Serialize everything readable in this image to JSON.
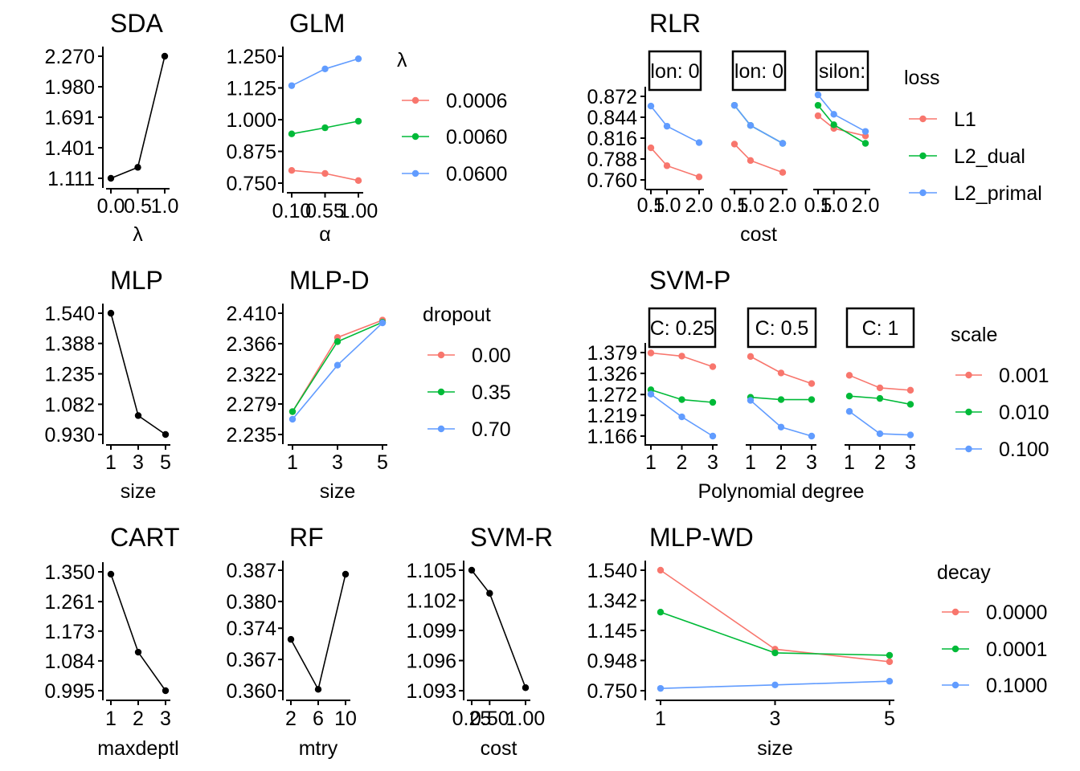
{
  "colors": {
    "red": "#F8766D",
    "green": "#00BA38",
    "blue": "#619CFF",
    "black": "#000000"
  },
  "chart_data": [
    {
      "id": "sda",
      "type": "line",
      "title": "SDA",
      "xlabel": "λ",
      "ylabel": "",
      "x_ticks": [
        "0.0",
        "0.5",
        "1.0"
      ],
      "y_ticks": [
        "2.270",
        "1.980",
        "1.691",
        "1.401",
        "1.111"
      ],
      "series": [
        {
          "color": "black",
          "x": [
            0.0,
            0.5,
            1.0
          ],
          "y": [
            1.111,
            1.215,
            2.27
          ]
        }
      ]
    },
    {
      "id": "glm",
      "type": "line",
      "title": "GLM",
      "xlabel": "α",
      "ylabel": "",
      "x_ticks": [
        "0.10",
        "0.55",
        "1.00"
      ],
      "y_ticks": [
        "1.250",
        "1.125",
        "1.000",
        "0.875",
        "0.750"
      ],
      "legend": {
        "title": "λ",
        "entries": [
          "0.0006",
          "0.0060",
          "0.0600"
        ],
        "colors": [
          "red",
          "green",
          "blue"
        ]
      },
      "series": [
        {
          "name": "0.0006",
          "color": "red",
          "x": [
            0.1,
            0.55,
            1.0
          ],
          "y": [
            0.8,
            0.788,
            0.76
          ]
        },
        {
          "name": "0.0060",
          "color": "green",
          "x": [
            0.1,
            0.55,
            1.0
          ],
          "y": [
            0.944,
            0.968,
            0.994
          ]
        },
        {
          "name": "0.0600",
          "color": "blue",
          "x": [
            0.1,
            0.55,
            1.0
          ],
          "y": [
            1.134,
            1.2,
            1.24
          ]
        }
      ]
    },
    {
      "id": "rlr",
      "type": "line",
      "title": "RLR",
      "xlabel": "cost",
      "ylabel": "",
      "facets": [
        "lon: 0",
        "lon: 0",
        "silon:"
      ],
      "x_ticks": [
        "0.5",
        "1.0",
        "2.0"
      ],
      "y_ticks": [
        "0.872",
        "0.844",
        "0.816",
        "0.788",
        "0.760"
      ],
      "legend": {
        "title": "loss",
        "entries": [
          "L1",
          "L2_dual",
          "L2_primal"
        ],
        "colors": [
          "red",
          "green",
          "blue"
        ]
      },
      "panels": [
        {
          "series": [
            {
              "name": "L1",
              "color": "red",
              "x": [
                0.5,
                1.0,
                2.0
              ],
              "y": [
                0.803,
                0.779,
                0.764
              ]
            },
            {
              "name": "L2_primal",
              "color": "blue",
              "x": [
                0.5,
                1.0,
                2.0
              ],
              "y": [
                0.859,
                0.832,
                0.81
              ]
            }
          ]
        },
        {
          "series": [
            {
              "name": "L1",
              "color": "red",
              "x": [
                0.5,
                1.0,
                2.0
              ],
              "y": [
                0.808,
                0.786,
                0.77
              ]
            },
            {
              "name": "L2_dual",
              "color": "green",
              "x": [
                0.5,
                1.0,
                2.0
              ],
              "y": [
                0.86,
                0.833,
                0.809
              ]
            },
            {
              "name": "L2_primal",
              "color": "blue",
              "x": [
                0.5,
                1.0,
                2.0
              ],
              "y": [
                0.86,
                0.833,
                0.809
              ]
            }
          ]
        },
        {
          "series": [
            {
              "name": "L1",
              "color": "red",
              "x": [
                0.5,
                1.0,
                2.0
              ],
              "y": [
                0.846,
                0.829,
                0.819
              ]
            },
            {
              "name": "L2_dual",
              "color": "green",
              "x": [
                0.5,
                1.0,
                2.0
              ],
              "y": [
                0.86,
                0.834,
                0.809
              ]
            },
            {
              "name": "L2_primal",
              "color": "blue",
              "x": [
                0.5,
                1.0,
                2.0
              ],
              "y": [
                0.874,
                0.848,
                0.825
              ]
            }
          ]
        }
      ]
    },
    {
      "id": "mlp",
      "type": "line",
      "title": "MLP",
      "xlabel": "size",
      "ylabel": "",
      "x_ticks": [
        "1",
        "3",
        "5"
      ],
      "y_ticks": [
        "1.540",
        "1.388",
        "1.235",
        "1.082",
        "0.930"
      ],
      "series": [
        {
          "color": "black",
          "x": [
            1,
            3,
            5
          ],
          "y": [
            1.54,
            1.025,
            0.93
          ]
        }
      ]
    },
    {
      "id": "mlpd",
      "type": "line",
      "title": "MLP-D",
      "xlabel": "size",
      "ylabel": "",
      "x_ticks": [
        "1",
        "3",
        "5"
      ],
      "y_ticks": [
        "2.410",
        "2.366",
        "2.322",
        "2.279",
        "2.235"
      ],
      "legend": {
        "title": "dropout",
        "entries": [
          "0.00",
          "0.35",
          "0.70"
        ],
        "colors": [
          "red",
          "green",
          "blue"
        ]
      },
      "series": [
        {
          "name": "0.00",
          "color": "red",
          "x": [
            1,
            3,
            5
          ],
          "y": [
            2.268,
            2.375,
            2.4
          ]
        },
        {
          "name": "0.35",
          "color": "green",
          "x": [
            1,
            3,
            5
          ],
          "y": [
            2.268,
            2.369,
            2.397
          ]
        },
        {
          "name": "0.70",
          "color": "blue",
          "x": [
            1,
            3,
            5
          ],
          "y": [
            2.257,
            2.335,
            2.396
          ]
        }
      ]
    },
    {
      "id": "svmp",
      "type": "line",
      "title": "SVM-P",
      "xlabel": "Polynomial degree",
      "ylabel": "",
      "facets": [
        "C: 0.25",
        "C: 0.5",
        "C: 1"
      ],
      "x_ticks": [
        "1",
        "2",
        "3"
      ],
      "y_ticks": [
        "1.379",
        "1.326",
        "1.272",
        "1.219",
        "1.166"
      ],
      "legend": {
        "title": "scale",
        "entries": [
          "0.001",
          "0.010",
          "0.100"
        ],
        "colors": [
          "red",
          "green",
          "blue"
        ]
      },
      "panels": [
        {
          "series": [
            {
              "name": "0.001",
              "color": "red",
              "x": [
                1,
                2,
                3
              ],
              "y": [
                1.378,
                1.37,
                1.343
              ]
            },
            {
              "name": "0.010",
              "color": "green",
              "x": [
                1,
                2,
                3
              ],
              "y": [
                1.284,
                1.259,
                1.252
              ]
            },
            {
              "name": "0.100",
              "color": "blue",
              "x": [
                1,
                2,
                3
              ],
              "y": [
                1.273,
                1.215,
                1.166
              ]
            }
          ]
        },
        {
          "series": [
            {
              "name": "0.001",
              "color": "red",
              "x": [
                1,
                2,
                3
              ],
              "y": [
                1.369,
                1.327,
                1.3
              ]
            },
            {
              "name": "0.010",
              "color": "green",
              "x": [
                1,
                2,
                3
              ],
              "y": [
                1.265,
                1.259,
                1.259
              ]
            },
            {
              "name": "0.100",
              "color": "blue",
              "x": [
                1,
                2,
                3
              ],
              "y": [
                1.257,
                1.189,
                1.166
              ]
            }
          ]
        },
        {
          "series": [
            {
              "name": "0.001",
              "color": "red",
              "x": [
                1,
                2,
                3
              ],
              "y": [
                1.321,
                1.289,
                1.283
              ]
            },
            {
              "name": "0.010",
              "color": "green",
              "x": [
                1,
                2,
                3
              ],
              "y": [
                1.268,
                1.262,
                1.247
              ]
            },
            {
              "name": "0.100",
              "color": "blue",
              "x": [
                1,
                2,
                3
              ],
              "y": [
                1.229,
                1.172,
                1.169
              ]
            }
          ]
        }
      ]
    },
    {
      "id": "cart",
      "type": "line",
      "title": "CART",
      "xlabel": "maxdeptl",
      "ylabel": "",
      "x_ticks": [
        "1",
        "2",
        "3"
      ],
      "y_ticks": [
        "1.350",
        "1.261",
        "1.173",
        "1.084",
        "0.995"
      ],
      "series": [
        {
          "color": "black",
          "x": [
            1,
            2,
            3
          ],
          "y": [
            1.343,
            1.11,
            0.995
          ]
        }
      ]
    },
    {
      "id": "rf",
      "type": "line",
      "title": "RF",
      "xlabel": "mtry",
      "ylabel": "",
      "x_ticks": [
        "2",
        "6",
        "10"
      ],
      "y_ticks": [
        "0.387",
        "0.380",
        "0.374",
        "0.367",
        "0.360"
      ],
      "series": [
        {
          "color": "black",
          "x": [
            2,
            6,
            10
          ],
          "y": [
            0.3715,
            0.3603,
            0.3861
          ]
        }
      ]
    },
    {
      "id": "svmr",
      "type": "line",
      "title": "SVM-R",
      "xlabel": "cost",
      "ylabel": "",
      "x_ticks": [
        "0.25",
        "0.50",
        "1.00"
      ],
      "y_ticks": [
        "1.105",
        "1.102",
        "1.099",
        "1.096",
        "1.093"
      ],
      "series": [
        {
          "color": "black",
          "x": [
            0.25,
            0.5,
            1.0
          ],
          "y": [
            1.105,
            1.1027,
            1.0933
          ]
        }
      ]
    },
    {
      "id": "mlpwd",
      "type": "line",
      "title": "MLP-WD",
      "xlabel": "size",
      "ylabel": "",
      "x_ticks": [
        "1",
        "3",
        "5"
      ],
      "y_ticks": [
        "1.540",
        "1.342",
        "1.145",
        "0.948",
        "0.750"
      ],
      "legend": {
        "title": "decay",
        "entries": [
          "0.0000",
          "0.0001",
          "0.1000"
        ],
        "colors": [
          "red",
          "green",
          "blue"
        ]
      },
      "series": [
        {
          "name": "0.0000",
          "color": "red",
          "x": [
            1,
            3,
            5
          ],
          "y": [
            1.54,
            1.022,
            0.94
          ]
        },
        {
          "name": "0.0001",
          "color": "green",
          "x": [
            1,
            3,
            5
          ],
          "y": [
            1.265,
            0.998,
            0.982
          ]
        },
        {
          "name": "0.1000",
          "color": "blue",
          "x": [
            1,
            3,
            5
          ],
          "y": [
            0.765,
            0.788,
            0.812
          ]
        }
      ]
    }
  ]
}
